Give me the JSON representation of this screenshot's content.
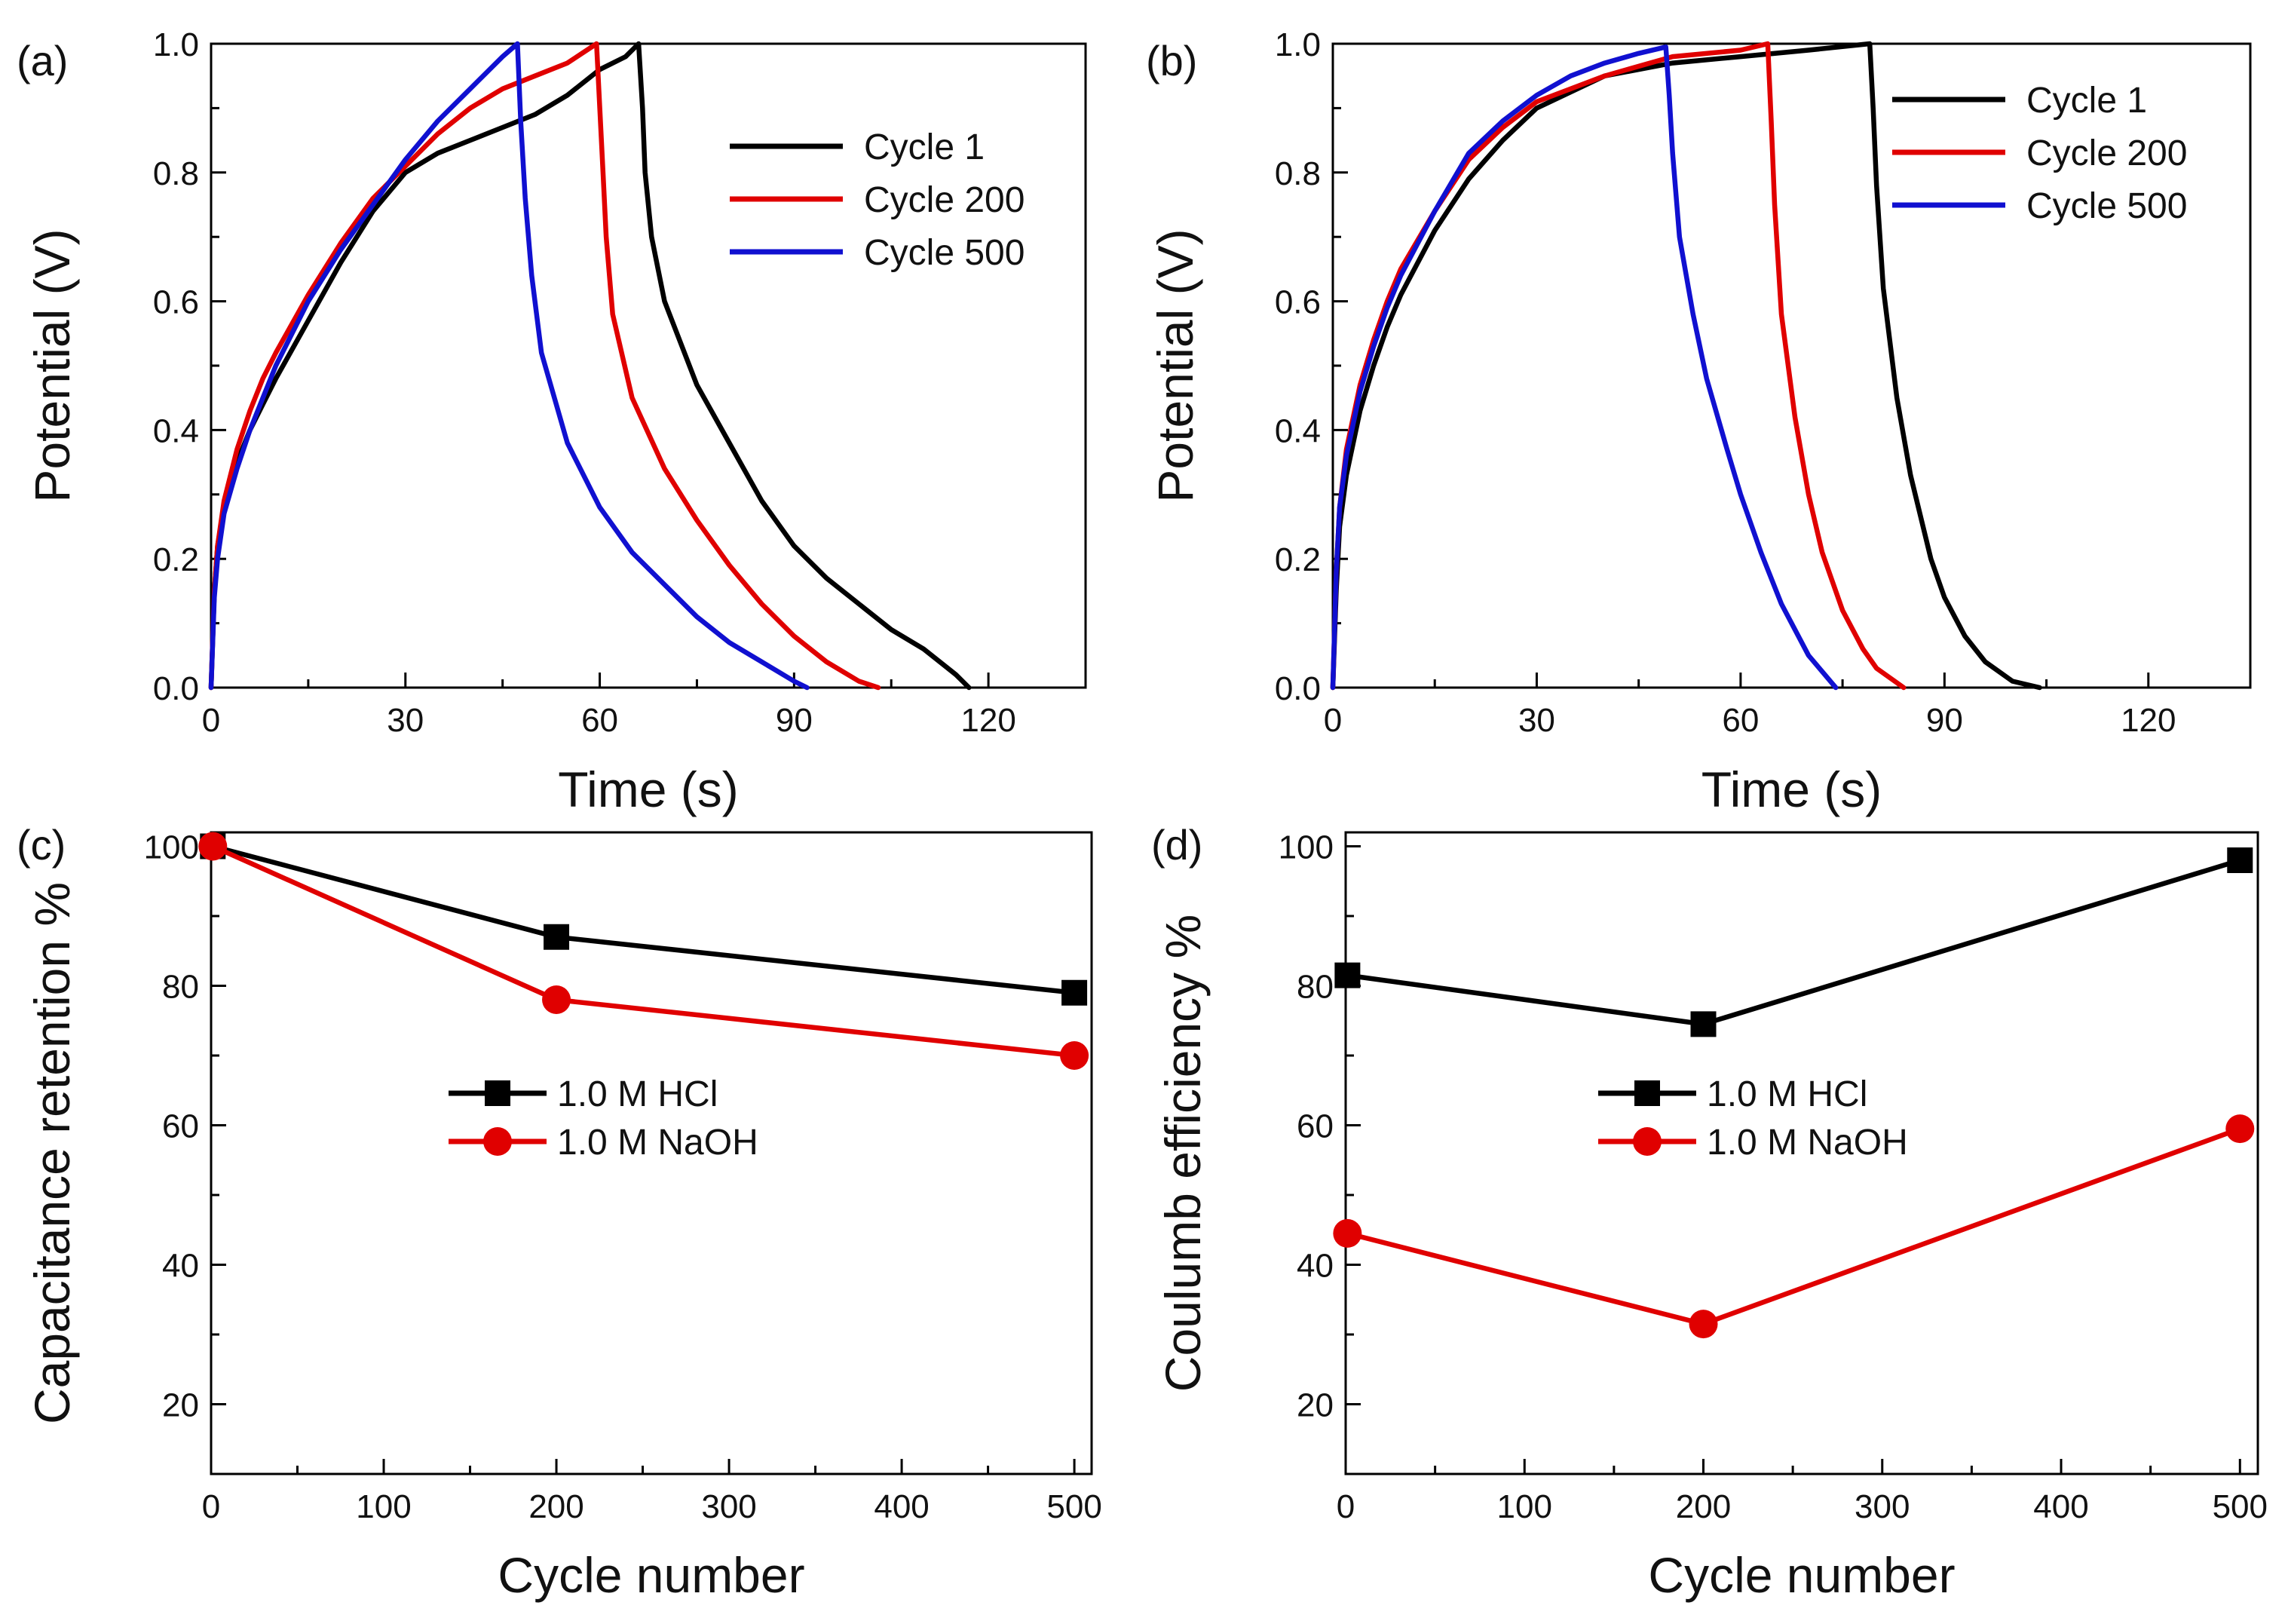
{
  "chart_data": [
    {
      "panel_label": "(a)",
      "type": "line",
      "xlabel": "Time (s)",
      "ylabel": "Potential (V)",
      "xlim": [
        0,
        135
      ],
      "ylim": [
        0,
        1.0
      ],
      "xticks": [
        0,
        30,
        60,
        90,
        120
      ],
      "yticks": [
        0.0,
        0.2,
        0.4,
        0.6,
        0.8,
        1.0
      ],
      "xtick_labels": [
        "0",
        "30",
        "60",
        "90",
        "120"
      ],
      "ytick_labels": [
        "0.0",
        "0.2",
        "0.4",
        "0.6",
        "0.8",
        "1.0"
      ],
      "legend_position": "top-right",
      "series": [
        {
          "name": "Cycle 1",
          "color": "#000000",
          "x": [
            0,
            0.5,
            1,
            2,
            4,
            6,
            8,
            10,
            15,
            20,
            25,
            30,
            35,
            40,
            45,
            50,
            55,
            60,
            64,
            66,
            66.6,
            67,
            68,
            70,
            75,
            80,
            85,
            90,
            95,
            100,
            105,
            110,
            115,
            117
          ],
          "y": [
            0,
            0.15,
            0.22,
            0.28,
            0.35,
            0.4,
            0.44,
            0.48,
            0.57,
            0.66,
            0.74,
            0.8,
            0.83,
            0.85,
            0.87,
            0.89,
            0.92,
            0.96,
            0.98,
            1.0,
            0.9,
            0.8,
            0.7,
            0.6,
            0.47,
            0.38,
            0.29,
            0.22,
            0.17,
            0.13,
            0.09,
            0.06,
            0.02,
            0.0
          ]
        },
        {
          "name": "Cycle 200",
          "color": "#e00000",
          "x": [
            0,
            0.5,
            1,
            2,
            4,
            6,
            8,
            10,
            15,
            20,
            25,
            30,
            35,
            40,
            45,
            50,
            55,
            59.5,
            60,
            60.5,
            61,
            62,
            65,
            70,
            75,
            80,
            85,
            90,
            95,
            100,
            103
          ],
          "y": [
            0,
            0.15,
            0.22,
            0.29,
            0.37,
            0.43,
            0.48,
            0.52,
            0.61,
            0.69,
            0.76,
            0.81,
            0.86,
            0.9,
            0.93,
            0.95,
            0.97,
            1.0,
            0.9,
            0.8,
            0.7,
            0.58,
            0.45,
            0.34,
            0.26,
            0.19,
            0.13,
            0.08,
            0.04,
            0.01,
            0.0
          ]
        },
        {
          "name": "Cycle 500",
          "color": "#1010d0",
          "x": [
            0,
            0.5,
            1,
            2,
            4,
            6,
            8,
            10,
            15,
            20,
            25,
            30,
            35,
            40,
            45,
            47.3,
            47.8,
            48.5,
            49.5,
            51,
            55,
            60,
            65,
            70,
            75,
            80,
            85,
            90,
            92
          ],
          "y": [
            0,
            0.14,
            0.2,
            0.27,
            0.34,
            0.4,
            0.45,
            0.5,
            0.6,
            0.68,
            0.75,
            0.82,
            0.88,
            0.93,
            0.98,
            1.0,
            0.88,
            0.76,
            0.64,
            0.52,
            0.38,
            0.28,
            0.21,
            0.16,
            0.11,
            0.07,
            0.04,
            0.01,
            0.0
          ]
        }
      ]
    },
    {
      "panel_label": "(b)",
      "type": "line",
      "xlabel": "Time (s)",
      "ylabel": "Potential (V)",
      "xlim": [
        0,
        135
      ],
      "ylim": [
        0,
        1.0
      ],
      "xticks": [
        0,
        30,
        60,
        90,
        120
      ],
      "yticks": [
        0.0,
        0.2,
        0.4,
        0.6,
        0.8,
        1.0
      ],
      "xtick_labels": [
        "0",
        "30",
        "60",
        "90",
        "120"
      ],
      "ytick_labels": [
        "0.0",
        "0.2",
        "0.4",
        "0.6",
        "0.8",
        "1.0"
      ],
      "legend_position": "top-right",
      "series": [
        {
          "name": "Cycle 1",
          "color": "#000000",
          "x": [
            0,
            0.5,
            1,
            2,
            4,
            6,
            8,
            10,
            15,
            20,
            25,
            30,
            40,
            50,
            60,
            70,
            79,
            79.5,
            80,
            81,
            83,
            85,
            88,
            90,
            93,
            96,
            100,
            104
          ],
          "y": [
            0,
            0.15,
            0.25,
            0.33,
            0.43,
            0.5,
            0.56,
            0.61,
            0.71,
            0.79,
            0.85,
            0.9,
            0.95,
            0.97,
            0.98,
            0.99,
            1.0,
            0.9,
            0.78,
            0.62,
            0.45,
            0.33,
            0.2,
            0.14,
            0.08,
            0.04,
            0.01,
            0.0
          ]
        },
        {
          "name": "Cycle 200",
          "color": "#e00000",
          "x": [
            0,
            0.5,
            1,
            2,
            4,
            6,
            8,
            10,
            15,
            20,
            25,
            30,
            40,
            50,
            60,
            64,
            64.5,
            65,
            66,
            68,
            70,
            72,
            75,
            78,
            80,
            84
          ],
          "y": [
            0,
            0.18,
            0.28,
            0.37,
            0.47,
            0.54,
            0.6,
            0.65,
            0.74,
            0.82,
            0.87,
            0.91,
            0.95,
            0.98,
            0.99,
            1.0,
            0.88,
            0.75,
            0.58,
            0.42,
            0.3,
            0.21,
            0.12,
            0.06,
            0.03,
            0.0
          ]
        },
        {
          "name": "Cycle 500",
          "color": "#1010d0",
          "x": [
            0,
            0.5,
            1,
            2,
            4,
            6,
            8,
            10,
            15,
            20,
            25,
            30,
            35,
            40,
            45,
            49,
            49.5,
            50,
            51,
            53,
            55,
            58,
            60,
            63,
            66,
            70,
            74
          ],
          "y": [
            0,
            0.18,
            0.28,
            0.36,
            0.46,
            0.53,
            0.59,
            0.64,
            0.74,
            0.83,
            0.88,
            0.92,
            0.95,
            0.97,
            0.985,
            0.995,
            0.92,
            0.83,
            0.7,
            0.58,
            0.48,
            0.37,
            0.3,
            0.21,
            0.13,
            0.05,
            0.0
          ]
        }
      ]
    },
    {
      "panel_label": "(c)",
      "type": "line",
      "xlabel": "Cycle number",
      "ylabel": "Capacitance retention %",
      "xlim": [
        0,
        510
      ],
      "ylim": [
        10,
        102
      ],
      "xticks": [
        0,
        100,
        200,
        300,
        400,
        500
      ],
      "yticks": [
        20,
        40,
        60,
        80,
        100
      ],
      "xtick_labels": [
        "0",
        "100",
        "200",
        "300",
        "400",
        "500"
      ],
      "ytick_labels": [
        "20",
        "40",
        "60",
        "80",
        "100"
      ],
      "legend_position": "center",
      "series": [
        {
          "name": "1.0 M HCl",
          "color": "#000000",
          "marker": "square",
          "x": [
            1,
            200,
            500
          ],
          "y": [
            100,
            87,
            79
          ]
        },
        {
          "name": "1.0 M NaOH",
          "color": "#e00000",
          "marker": "circle",
          "x": [
            1,
            200,
            500
          ],
          "y": [
            100,
            78,
            70
          ]
        }
      ]
    },
    {
      "panel_label": "(d)",
      "type": "line",
      "xlabel": "Cycle number",
      "ylabel": "Coulumb efficiency %",
      "xlim": [
        0,
        510
      ],
      "ylim": [
        10,
        102
      ],
      "xticks": [
        0,
        100,
        200,
        300,
        400,
        500
      ],
      "yticks": [
        20,
        40,
        60,
        80,
        100
      ],
      "xtick_labels": [
        "0",
        "100",
        "200",
        "300",
        "400",
        "500"
      ],
      "ytick_labels": [
        "20",
        "40",
        "60",
        "80",
        "100"
      ],
      "legend_position": "center",
      "series": [
        {
          "name": "1.0 M HCl",
          "color": "#000000",
          "marker": "square",
          "x": [
            1,
            200,
            500
          ],
          "y": [
            81.5,
            74.5,
            98
          ]
        },
        {
          "name": "1.0 M NaOH",
          "color": "#e00000",
          "marker": "circle",
          "x": [
            1,
            200,
            500
          ],
          "y": [
            44.5,
            31.5,
            59.5
          ]
        }
      ]
    }
  ]
}
